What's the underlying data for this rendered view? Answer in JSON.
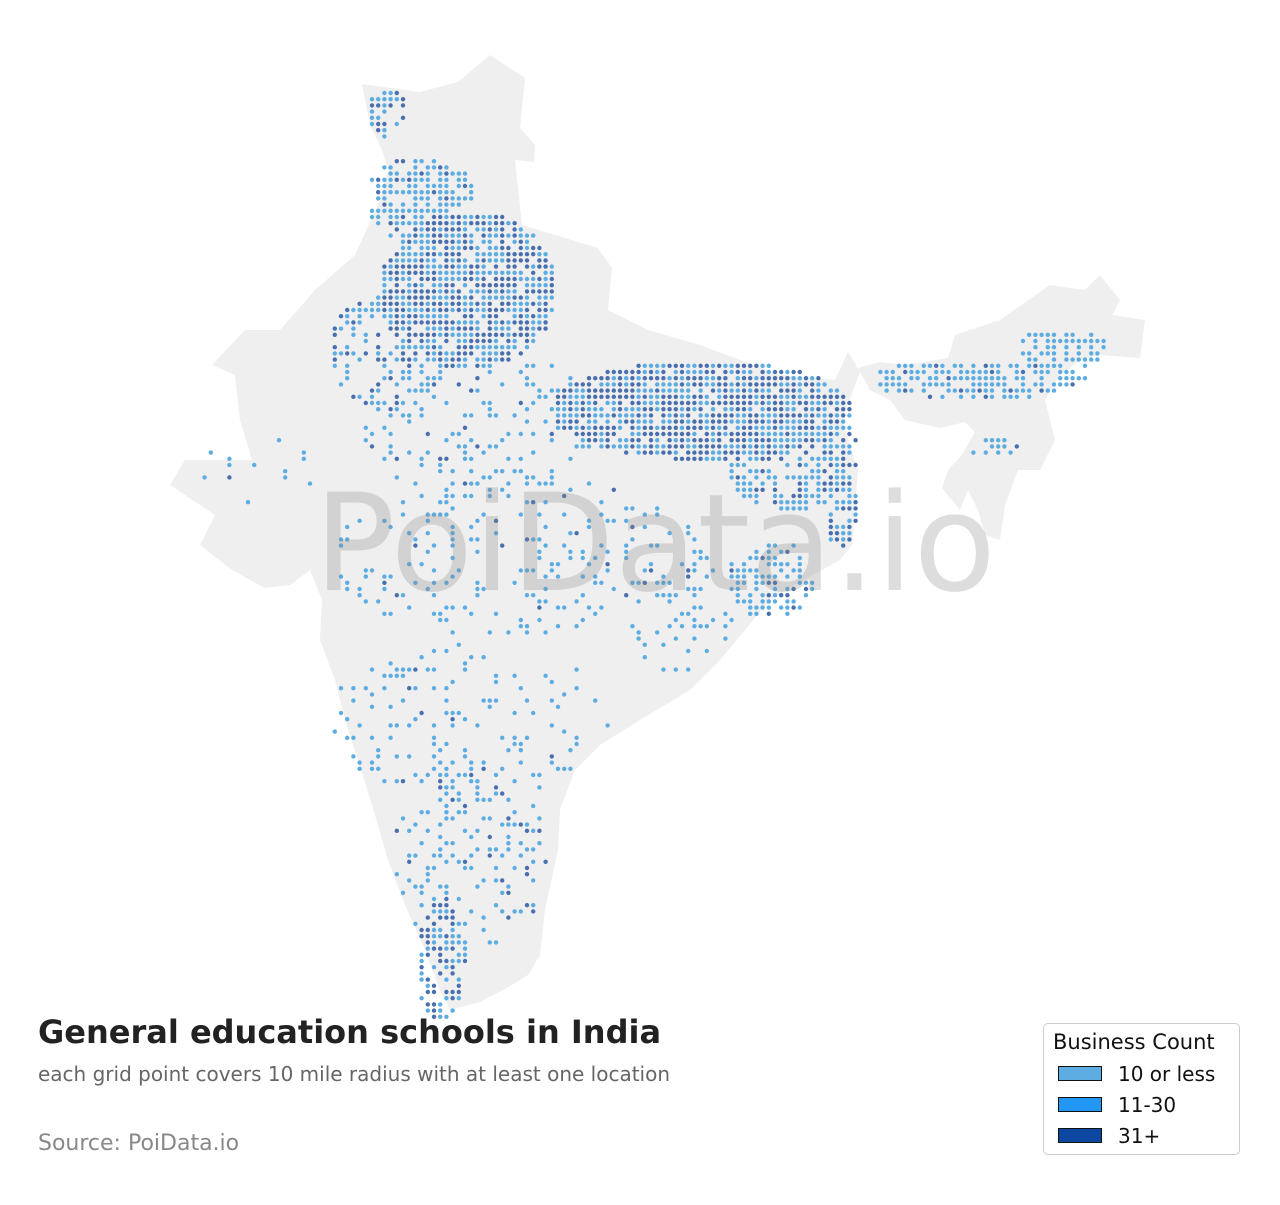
{
  "title": "General education schools in India",
  "subtitle": "each grid point covers 10 mile radius with at least one location",
  "source": "Source: PoiData.io",
  "watermark": "PoiData.io",
  "legend": {
    "title": "Business Count",
    "items": [
      {
        "label": "10 or less",
        "color": "#5dade2"
      },
      {
        "label": "11-30",
        "color": "#2196f3"
      },
      {
        "label": "31+",
        "color": "#0d47a1"
      }
    ]
  },
  "colors": {
    "land": "#efefef",
    "dot_low": "#5dade2",
    "dot_high": "#4a6fae"
  }
}
